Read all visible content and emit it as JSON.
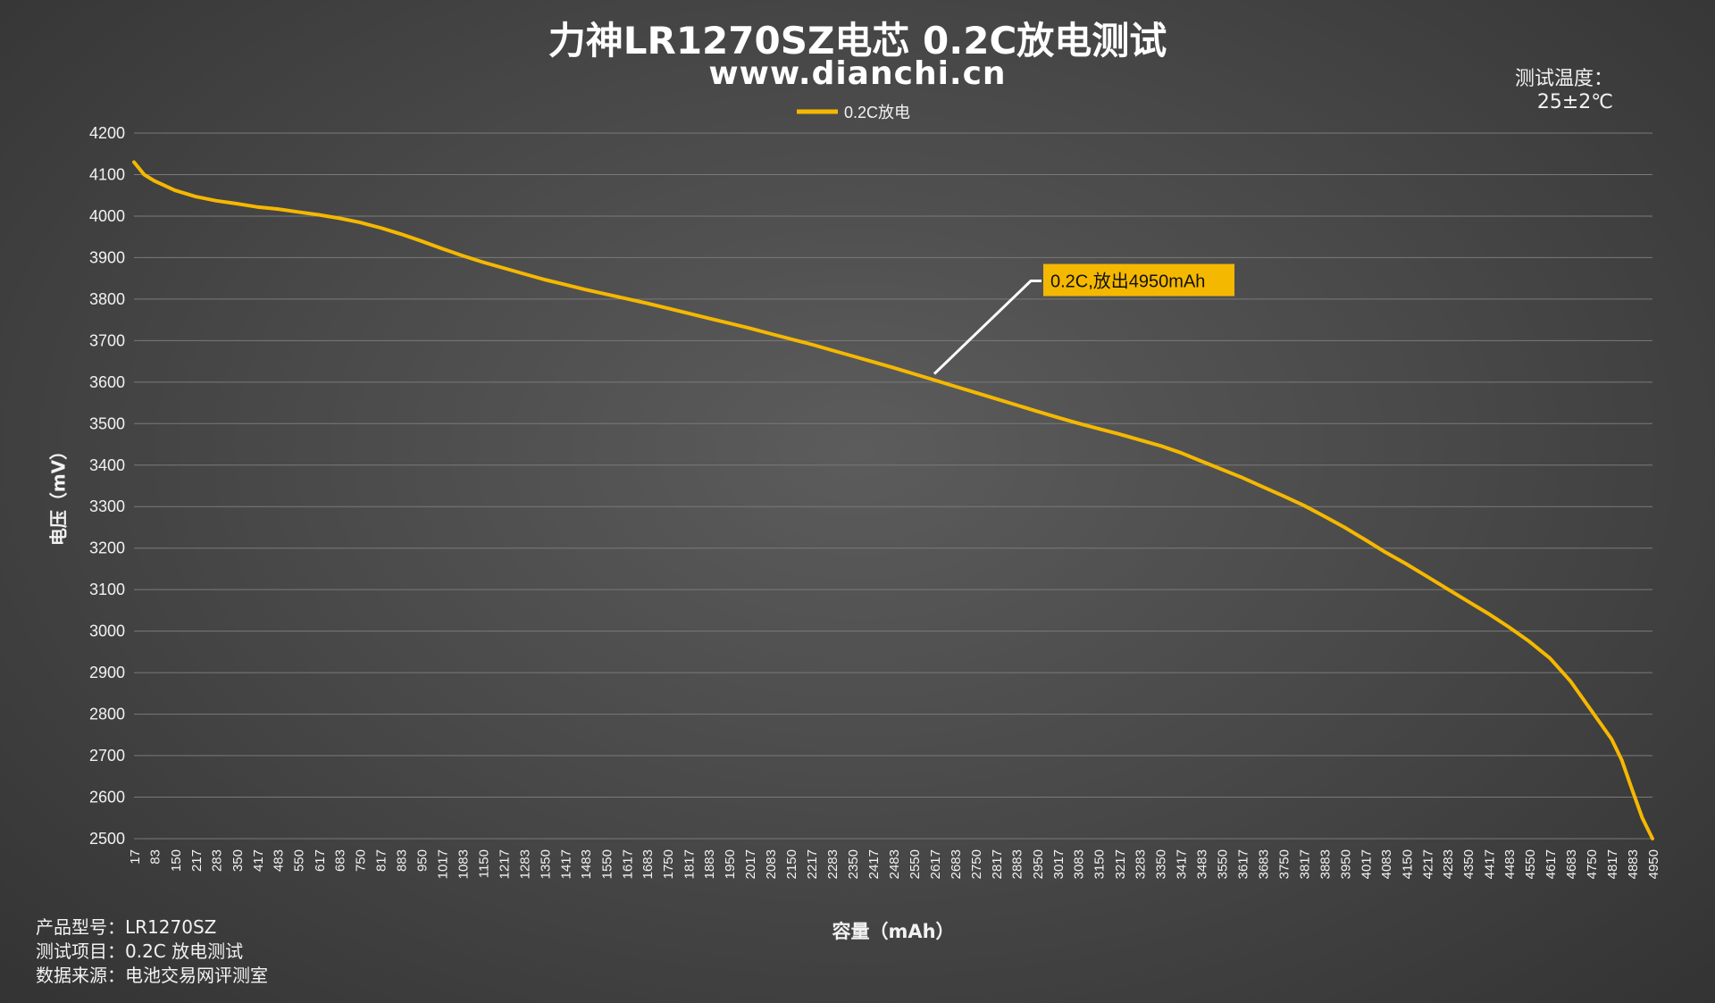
{
  "title": "力神LR1270SZ电芯 0.2C放电测试",
  "subtitle": "www.dianchi.cn",
  "temperature": {
    "label": "测试温度：",
    "value": "25±2℃"
  },
  "product_info": [
    {
      "key": "产品型号：",
      "value": "LR1270SZ"
    },
    {
      "key": "测试项目：",
      "value": "0.2C 放电测试"
    },
    {
      "key": "数据来源：",
      "value": "电池交易网评测室"
    }
  ],
  "colors": {
    "series": "#f5b800",
    "annotation_bg": "#f5b800",
    "annotation_text": "#111111",
    "grid": "#7a7a7a",
    "text": "#ffffff"
  },
  "chart_data": {
    "type": "line",
    "title": "力神LR1270SZ电芯 0.2C放电测试",
    "xlabel": "容量（mAh）",
    "ylabel": "电压（mV）",
    "ylim": [
      2500,
      4200
    ],
    "yticks": [
      2500,
      2600,
      2700,
      2800,
      2900,
      3000,
      3100,
      3200,
      3300,
      3400,
      3500,
      3600,
      3700,
      3800,
      3900,
      4000,
      4100,
      4200
    ],
    "xticks": [
      "17",
      "83",
      "150",
      "217",
      "283",
      "350",
      "417",
      "483",
      "550",
      "617",
      "683",
      "750",
      "817",
      "883",
      "950",
      "1017",
      "1083",
      "1150",
      "1217",
      "1283",
      "1350",
      "1417",
      "1483",
      "1550",
      "1617",
      "1683",
      "1750",
      "1817",
      "1883",
      "1950",
      "2017",
      "2083",
      "2150",
      "2217",
      "2283",
      "2350",
      "2417",
      "2483",
      "2550",
      "2617",
      "2683",
      "2750",
      "2817",
      "2883",
      "2950",
      "3017",
      "3083",
      "3150",
      "3217",
      "3283",
      "3350",
      "3417",
      "3483",
      "3550",
      "3617",
      "3683",
      "3750",
      "3817",
      "3883",
      "3950",
      "4017",
      "4083",
      "4150",
      "4217",
      "4283",
      "4350",
      "4417",
      "4483",
      "4550",
      "4617",
      "4683",
      "4750",
      "4817",
      "4883",
      "4950"
    ],
    "grid": true,
    "legend": "top-center",
    "series": [
      {
        "name": "0.2C放电",
        "x": [
          17,
          50,
          83,
          150,
          217,
          283,
          350,
          417,
          483,
          550,
          617,
          683,
          750,
          817,
          883,
          950,
          1017,
          1083,
          1150,
          1217,
          1283,
          1350,
          1417,
          1483,
          1550,
          1617,
          1683,
          1750,
          1817,
          1883,
          1950,
          2017,
          2083,
          2150,
          2217,
          2283,
          2350,
          2417,
          2483,
          2550,
          2617,
          2683,
          2750,
          2817,
          2883,
          2950,
          3017,
          3083,
          3150,
          3217,
          3283,
          3350,
          3417,
          3483,
          3550,
          3617,
          3683,
          3750,
          3817,
          3883,
          3950,
          4017,
          4083,
          4150,
          4217,
          4283,
          4350,
          4417,
          4483,
          4550,
          4617,
          4683,
          4750,
          4817,
          4850,
          4883,
          4917,
          4950
        ],
        "values": [
          4130,
          4100,
          4085,
          4062,
          4047,
          4037,
          4030,
          4022,
          4017,
          4010,
          4003,
          3995,
          3985,
          3972,
          3957,
          3940,
          3922,
          3905,
          3889,
          3875,
          3861,
          3847,
          3835,
          3823,
          3812,
          3801,
          3790,
          3778,
          3766,
          3754,
          3742,
          3730,
          3717,
          3704,
          3691,
          3677,
          3663,
          3649,
          3635,
          3620,
          3605,
          3590,
          3575,
          3560,
          3545,
          3530,
          3515,
          3501,
          3488,
          3475,
          3461,
          3447,
          3430,
          3410,
          3390,
          3370,
          3348,
          3326,
          3303,
          3277,
          3250,
          3220,
          3190,
          3162,
          3132,
          3102,
          3072,
          3042,
          3010,
          2975,
          2935,
          2880,
          2810,
          2740,
          2690,
          2620,
          2550,
          2500
        ]
      }
    ],
    "annotation": {
      "text": "0.2C,放出4950mAh",
      "x": 2617,
      "y": 3620
    }
  }
}
